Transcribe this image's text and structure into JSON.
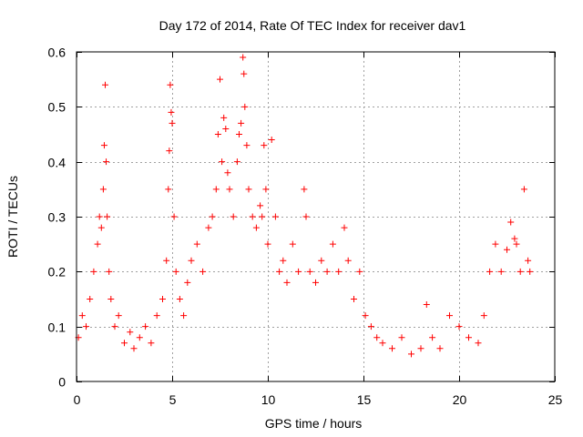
{
  "chart_data": {
    "type": "scatter",
    "title": "Day 172 of 2014, Rate Of TEC Index for receiver dav1",
    "xlabel": "GPS time / hours",
    "ylabel": "ROTI / TECUs",
    "xlim": [
      0,
      25
    ],
    "ylim": [
      0,
      0.6
    ],
    "xticks": [
      0,
      5,
      10,
      15,
      20,
      25
    ],
    "yticks": [
      0,
      0.1,
      0.2,
      0.3,
      0.4,
      0.5,
      0.6
    ],
    "xtick_labels": [
      "0",
      "5",
      "10",
      "15",
      "20",
      "25"
    ],
    "ytick_labels": [
      "0",
      "0.1",
      "0.2",
      "0.3",
      "0.4",
      "0.5",
      "0.6"
    ],
    "grid": true,
    "marker": "+",
    "color": "#ff0000",
    "series": [
      {
        "name": "ROTI",
        "x": [
          0.1,
          0.3,
          0.5,
          0.7,
          0.9,
          1.1,
          1.2,
          1.3,
          1.4,
          1.45,
          1.5,
          1.55,
          1.6,
          1.7,
          1.8,
          2.0,
          2.2,
          2.5,
          2.8,
          3.0,
          3.3,
          3.6,
          3.9,
          4.2,
          4.5,
          4.7,
          4.8,
          4.85,
          4.9,
          4.95,
          5.0,
          5.1,
          5.2,
          5.4,
          5.6,
          5.8,
          6.0,
          6.3,
          6.6,
          6.9,
          7.1,
          7.3,
          7.4,
          7.5,
          7.6,
          7.7,
          7.8,
          7.9,
          8.0,
          8.2,
          8.4,
          8.5,
          8.6,
          8.7,
          8.75,
          8.8,
          8.9,
          9.0,
          9.2,
          9.4,
          9.6,
          9.7,
          9.8,
          9.9,
          10.0,
          10.2,
          10.4,
          10.6,
          10.8,
          11.0,
          11.3,
          11.6,
          11.9,
          12.0,
          12.2,
          12.5,
          12.8,
          13.1,
          13.4,
          13.7,
          14.0,
          14.2,
          14.5,
          14.8,
          15.1,
          15.4,
          15.7,
          16.0,
          16.5,
          17.0,
          17.5,
          18.0,
          18.3,
          18.6,
          19.0,
          19.5,
          20.0,
          20.5,
          21.0,
          21.3,
          21.6,
          21.9,
          22.2,
          22.5,
          22.7,
          22.9,
          23.0,
          23.2,
          23.4,
          23.6,
          23.7
        ],
        "y": [
          0.08,
          0.12,
          0.1,
          0.15,
          0.2,
          0.25,
          0.3,
          0.28,
          0.35,
          0.43,
          0.54,
          0.4,
          0.3,
          0.2,
          0.15,
          0.1,
          0.12,
          0.07,
          0.09,
          0.06,
          0.08,
          0.1,
          0.07,
          0.12,
          0.15,
          0.22,
          0.35,
          0.42,
          0.54,
          0.49,
          0.47,
          0.3,
          0.2,
          0.15,
          0.12,
          0.18,
          0.22,
          0.25,
          0.2,
          0.28,
          0.3,
          0.35,
          0.45,
          0.55,
          0.4,
          0.48,
          0.46,
          0.38,
          0.35,
          0.3,
          0.4,
          0.45,
          0.47,
          0.59,
          0.56,
          0.5,
          0.43,
          0.35,
          0.3,
          0.28,
          0.32,
          0.3,
          0.43,
          0.35,
          0.25,
          0.44,
          0.3,
          0.2,
          0.22,
          0.18,
          0.25,
          0.2,
          0.35,
          0.3,
          0.2,
          0.18,
          0.22,
          0.2,
          0.25,
          0.2,
          0.28,
          0.22,
          0.15,
          0.2,
          0.12,
          0.1,
          0.08,
          0.07,
          0.06,
          0.08,
          0.05,
          0.06,
          0.14,
          0.08,
          0.06,
          0.12,
          0.1,
          0.08,
          0.07,
          0.12,
          0.2,
          0.25,
          0.2,
          0.24,
          0.29,
          0.26,
          0.25,
          0.2,
          0.35,
          0.22,
          0.2
        ]
      }
    ]
  }
}
